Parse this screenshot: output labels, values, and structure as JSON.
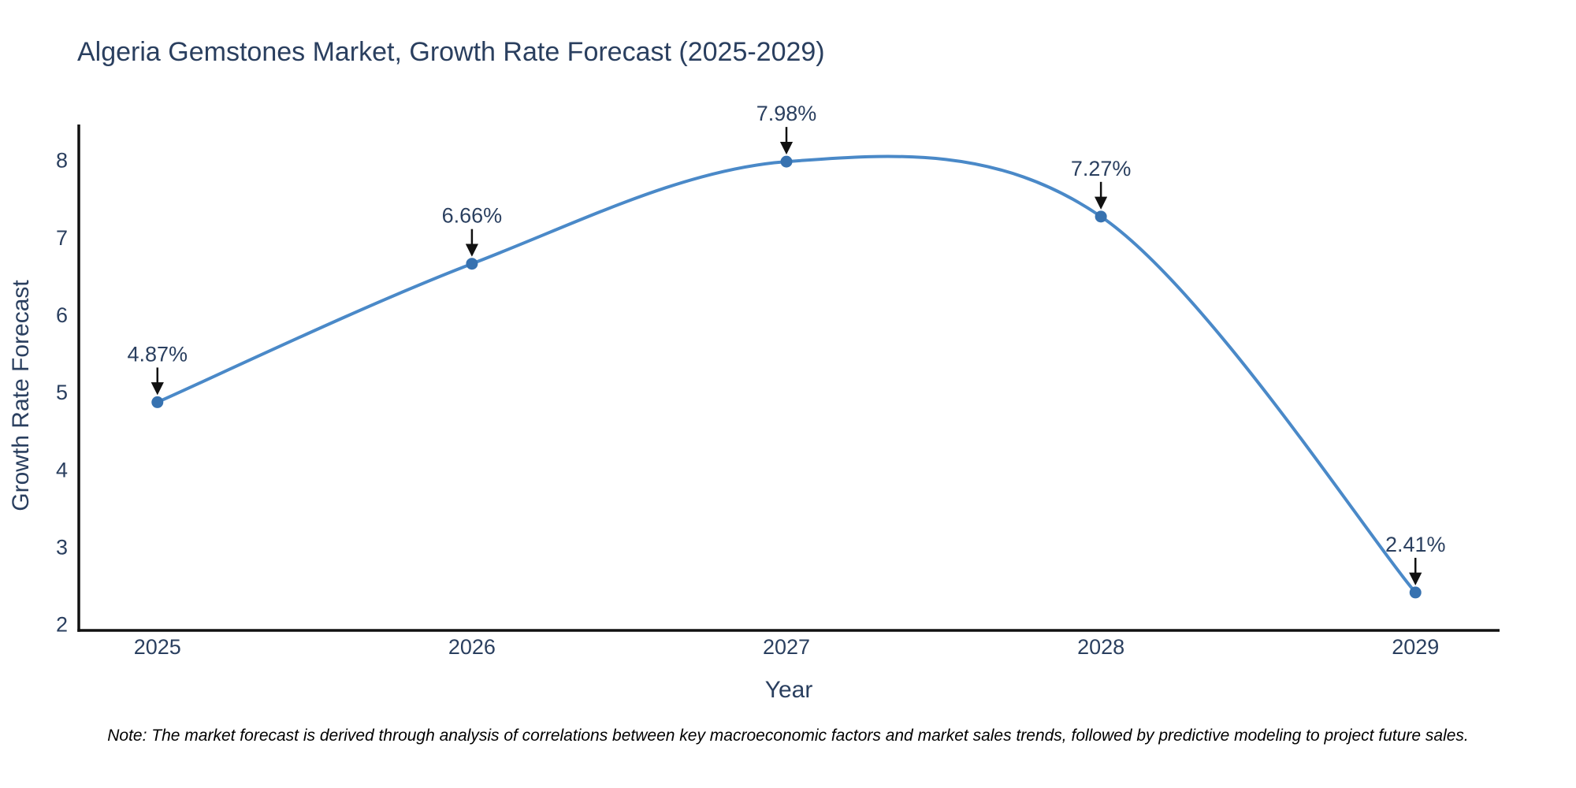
{
  "chart_data": {
    "type": "line",
    "title": "Algeria Gemstones Market, Growth Rate Forecast (2025-2029)",
    "xlabel": "Year",
    "ylabel": "Growth Rate Forecast",
    "categories": [
      2025,
      2026,
      2027,
      2028,
      2029
    ],
    "values": [
      4.87,
      6.66,
      7.98,
      7.27,
      2.41
    ],
    "point_labels": [
      "4.87%",
      "6.66%",
      "7.98%",
      "7.27%",
      "2.41%"
    ],
    "y_ticks": [
      2,
      3,
      4,
      5,
      6,
      7,
      8
    ],
    "ylim": [
      1.92,
      8.46
    ],
    "xlim": [
      2024.75,
      2029.26
    ],
    "line_shape": "spline",
    "grid": false,
    "legend_position": "none",
    "line_color": "#4a89c8",
    "marker_color": "#3772b0",
    "arrow_color": "#111111",
    "axis_color": "#111111",
    "text_color": "#2a3f5f",
    "note": "Note: The market forecast is derived through analysis of correlations between key macroeconomic factors and market sales trends, followed by predictive modeling to project future sales."
  }
}
